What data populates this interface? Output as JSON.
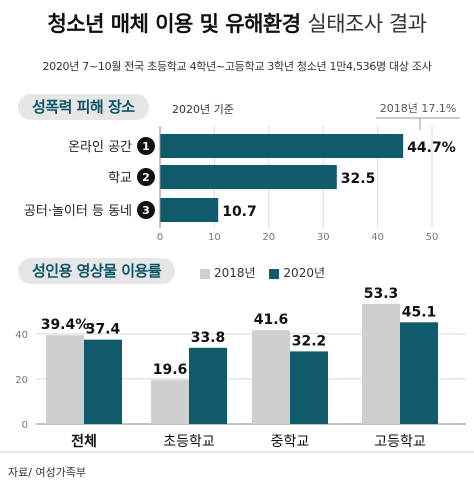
{
  "header": {
    "title_bold": "청소년 매체 이용 및 유해환경",
    "title_light": "실태조사 결과",
    "subtitle": "2020년 7~10월 전국 초등학교 4학년~고등학교 3학년 청소년 1만4,536명 대상 조사"
  },
  "section1": {
    "label": "성폭력 피해 장소",
    "basis": "2020년 기준",
    "reference": "2018년 17.1%"
  },
  "section2": {
    "label": "성인용 영상물 이용률"
  },
  "source": "자료/ 여성가족부",
  "colors": {
    "teal": "#0f5a6b",
    "gray": "#cfcfcf",
    "pill_bg": "#e6e6e6"
  },
  "chart_data": [
    {
      "type": "bar",
      "orientation": "horizontal",
      "title": "성폭력 피해 장소",
      "categories": [
        "온라인 공간",
        "학교",
        "공터·놀이터 등 동네"
      ],
      "ranks": [
        "1",
        "2",
        "3"
      ],
      "values": [
        44.7,
        32.5,
        10.7
      ],
      "value_labels": [
        "44.7%",
        "32.5",
        "10.7"
      ],
      "xlim": [
        0,
        50
      ],
      "xticks": [
        0,
        10,
        20,
        30,
        40,
        50
      ],
      "reference": {
        "value": 17.1,
        "label": "2018년 17.1%"
      }
    },
    {
      "type": "bar",
      "title": "성인용 영상물 이용률",
      "categories": [
        "전체",
        "초등학교",
        "중학교",
        "고등학교"
      ],
      "series": [
        {
          "name": "2018년",
          "values": [
            39.4,
            19.6,
            41.6,
            53.3
          ],
          "labels": [
            "39.4%",
            "19.6",
            "41.6",
            "53.3"
          ]
        },
        {
          "name": "2020년",
          "values": [
            37.4,
            33.8,
            32.2,
            45.1
          ],
          "labels": [
            "37.4",
            "33.8",
            "32.2",
            "45.1"
          ]
        }
      ],
      "ylim": [
        0,
        55
      ],
      "yticks": [
        0,
        20,
        40
      ],
      "legend": "top"
    }
  ]
}
